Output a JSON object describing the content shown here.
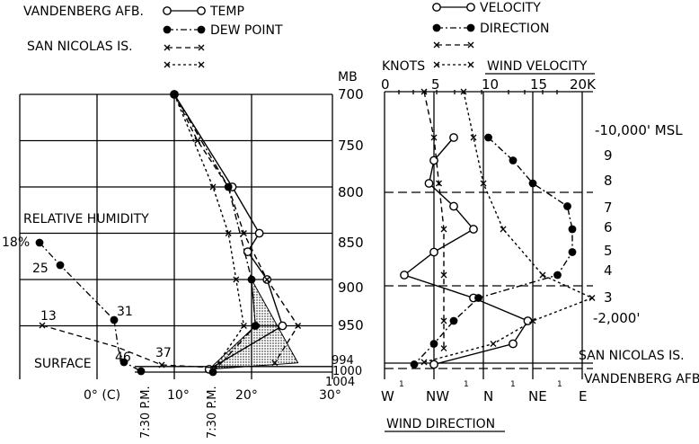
{
  "chart_data": [
    {
      "type": "line",
      "title": "",
      "xlabel": "",
      "ylabel": "MB",
      "x_unit_label": "0° (C)",
      "x_ticks": [
        "10°",
        "20°",
        "30°"
      ],
      "y_ticks": [
        "700",
        "750",
        "800",
        "850",
        "900",
        "950",
        "994",
        "1000",
        "1004"
      ],
      "xlim": [
        -8,
        30
      ],
      "ylim": [
        1004,
        700
      ],
      "grid": true,
      "legend": {
        "stations": [
          "VANDENBERG AFB.",
          "SAN NICOLAS IS."
        ],
        "entries": [
          "TEMP",
          "DEW POINT"
        ]
      },
      "series": [
        {
          "name": "TEMP",
          "station": "VANDENBERG AFB.",
          "points": [
            [
              10,
              700
            ],
            [
              17.5,
              800
            ],
            [
              21,
              850
            ],
            [
              19.5,
              870
            ],
            [
              22,
              900
            ],
            [
              24,
              950
            ],
            [
              14.5,
              997
            ]
          ]
        },
        {
          "name": "DEW POINT",
          "station": "VANDENBERG AFB.",
          "points": [
            [
              10,
              700
            ],
            [
              17,
              800
            ],
            [
              20,
              900
            ],
            [
              20.5,
              950
            ],
            [
              15,
              1000
            ]
          ]
        },
        {
          "station": "SAN NICOLAS IS.",
          "points": [
            [
              10,
              700
            ],
            [
              13,
              750
            ],
            [
              17,
              800
            ],
            [
              19,
              850
            ],
            [
              22,
              900
            ],
            [
              26,
              950
            ],
            [
              23,
              990
            ]
          ]
        },
        {
          "station": "SAN NICOLAS IS.",
          "points": [
            [
              10,
              700
            ],
            [
              15,
              800
            ],
            [
              17,
              850
            ],
            [
              18,
              900
            ],
            [
              19,
              950
            ],
            [
              15,
              998
            ]
          ]
        }
      ],
      "relative_humidity": {
        "label": "RELATIVE HUMIDITY",
        "values": [
          "18%",
          "25",
          "31",
          "13",
          "46",
          "37"
        ],
        "surface_label": "SURFACE",
        "time_labels": [
          "7:30 P.M.",
          "7:30 P.M."
        ]
      }
    },
    {
      "type": "line",
      "title": "WIND VELOCITY",
      "xlabel": "WIND DIRECTION",
      "velocity_unit": "KNOTS",
      "velocity_ticks": [
        "0",
        "5",
        "10",
        "15",
        "20K"
      ],
      "direction_ticks": [
        "W",
        "NW",
        "N",
        "NE",
        "E"
      ],
      "height_labels": [
        "-10,000' MSL",
        "9",
        "8",
        "7",
        "6",
        "5",
        "4",
        "3",
        "-2,000'"
      ],
      "station_labels": [
        "SAN NICOLAS IS.",
        "VANDENBERG AFB."
      ],
      "legend": {
        "entries": [
          "VELOCITY",
          "DIRECTION"
        ]
      },
      "series": [
        {
          "name": "VELOCITY",
          "station": "VANDENBERG AFB.",
          "points": [
            [
              7,
              10000
            ],
            [
              5,
              9000
            ],
            [
              4.5,
              8000
            ],
            [
              7,
              7000
            ],
            [
              9,
              6000
            ],
            [
              5,
              5000
            ],
            [
              2,
              4000
            ],
            [
              9,
              3000
            ],
            [
              14.5,
              2000
            ],
            [
              13,
              1000
            ],
            [
              5,
              100
            ]
          ]
        },
        {
          "name": "DIRECTION",
          "station": "VANDENBERG AFB.",
          "points": [
            [
              10.5,
              10000
            ],
            [
              13,
              9000
            ],
            [
              15,
              8000
            ],
            [
              18.5,
              7000
            ],
            [
              19,
              6000
            ],
            [
              19,
              5000
            ],
            [
              17.5,
              4000
            ],
            [
              9.5,
              3000
            ],
            [
              7,
              2000
            ],
            [
              5,
              1000
            ],
            [
              3,
              100
            ]
          ]
        },
        {
          "station": "SAN NICOLAS IS.",
          "points": [
            [
              4,
              12000
            ],
            [
              5,
              10000
            ],
            [
              5.5,
              8000
            ],
            [
              6,
              6000
            ],
            [
              6,
              4000
            ],
            [
              6,
              2000
            ],
            [
              6,
              800
            ]
          ]
        },
        {
          "station": "SAN NICOLAS IS.",
          "points": [
            [
              8,
              12000
            ],
            [
              9,
              10000
            ],
            [
              10,
              8000
            ],
            [
              12,
              6000
            ],
            [
              16,
              4000
            ],
            [
              21,
              3000
            ],
            [
              15,
              2000
            ],
            [
              11,
              1000
            ],
            [
              4,
              200
            ]
          ]
        }
      ]
    }
  ]
}
